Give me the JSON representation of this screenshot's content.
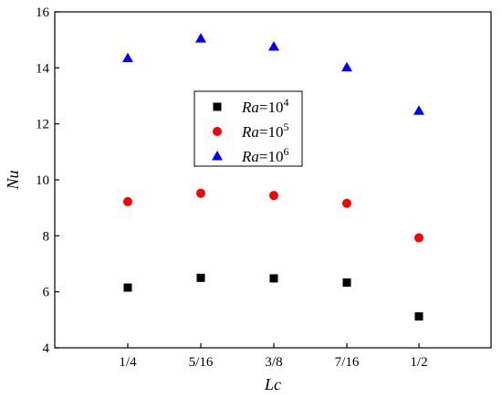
{
  "chart_data": {
    "type": "scatter",
    "xlabel": "Lc",
    "ylabel": "Nu",
    "categories": [
      "1/4",
      "5/16",
      "3/8",
      "7/16",
      "1/2"
    ],
    "ylim": [
      4,
      16
    ],
    "yticks": [
      "4",
      "6",
      "8",
      "10",
      "12",
      "14",
      "16"
    ],
    "grid": false,
    "legend_position": "center",
    "series": [
      {
        "var": "Ra",
        "eq": "=10",
        "exp": "4",
        "marker": "square",
        "color": "#000000",
        "values": [
          6.15,
          6.5,
          6.48,
          6.33,
          5.12
        ]
      },
      {
        "var": "Ra",
        "eq": "=10",
        "exp": "5",
        "marker": "circle",
        "color": "#ff0000",
        "values": [
          9.22,
          9.52,
          9.44,
          9.16,
          7.93
        ]
      },
      {
        "var": "Ra",
        "eq": "=10",
        "exp": "6",
        "marker": "triangle",
        "color": "#0000ff",
        "values": [
          14.35,
          15.05,
          14.76,
          14.02,
          12.47
        ]
      }
    ]
  }
}
